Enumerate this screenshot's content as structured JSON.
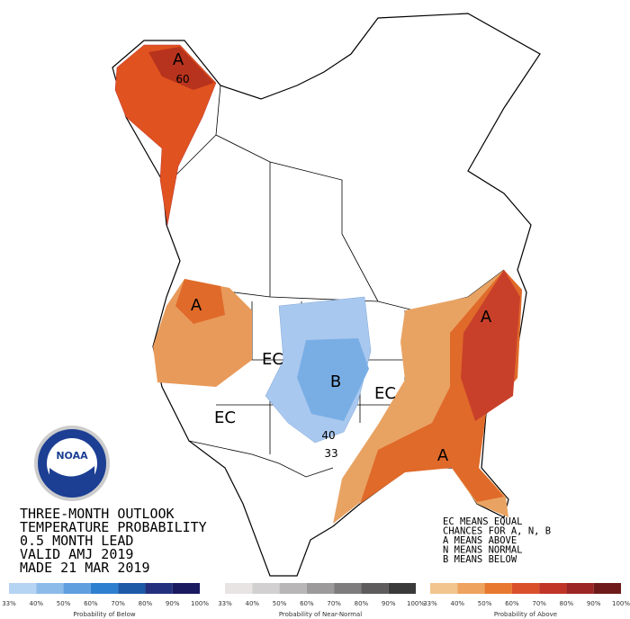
{
  "title": [
    "THREE-MONTH OUTLOOK",
    "TEMPERATURE PROBABILITY",
    "0.5 MONTH LEAD",
    "VALID AMJ 2019",
    "MADE 21 MAR 2019"
  ],
  "key": [
    "EC MEANS EQUAL",
    "CHANCES FOR A, N, B",
    "A MEANS ABOVE",
    "N MEANS NORMAL",
    "B MEANS BELOW"
  ],
  "logo": "NOAA",
  "map_labels": [
    "A",
    "60",
    "A",
    "EC",
    "B",
    "40",
    "33",
    "EC",
    "EC",
    "A",
    "A"
  ],
  "legend": [
    {
      "title": "Probability of Below",
      "ticks": [
        "33%",
        "40%",
        "50%",
        "60%",
        "70%",
        "80%",
        "90%",
        "100%"
      ]
    },
    {
      "title": "Probability of Near-Normal",
      "ticks": [
        "33%",
        "40%",
        "50%",
        "60%",
        "70%",
        "80%",
        "90%",
        "100%"
      ]
    },
    {
      "title": "Probability of Above",
      "ticks": [
        "33%",
        "40%",
        "50%",
        "60%",
        "70%",
        "80%",
        "90%",
        "100%"
      ]
    }
  ]
}
